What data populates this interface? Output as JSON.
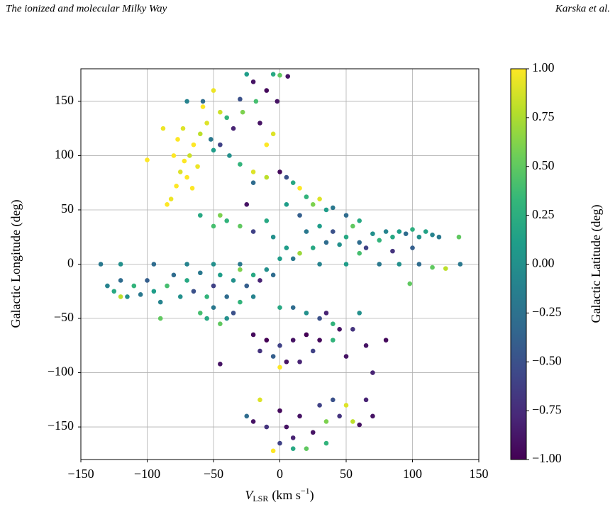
{
  "header": {
    "left": "The ionized and molecular Milky Way",
    "right": "Karska et al."
  },
  "chart_data": {
    "type": "scatter",
    "xlabel": [
      "V",
      "LSR",
      "(km s",
      "−1",
      ")"
    ],
    "ylabel": "Galactic Longitude (deg)",
    "clabel": "Galactic Latitude (deg)",
    "colormap": "viridis",
    "grid": true,
    "xlim": [
      -150,
      150
    ],
    "ylim": [
      -180,
      180
    ],
    "clim": [
      -1,
      1
    ],
    "xticks": [
      {
        "value": -150,
        "label": "−150"
      },
      {
        "value": -100,
        "label": "−100"
      },
      {
        "value": -50,
        "label": "−50"
      },
      0,
      50,
      100,
      150
    ],
    "yticks": [
      {
        "value": -150,
        "label": "−150"
      },
      {
        "value": -100,
        "label": "−100"
      },
      {
        "value": -50,
        "label": "−50"
      },
      0,
      50,
      100,
      150
    ],
    "cticks": [
      {
        "value": -1,
        "label": "−1.00"
      },
      {
        "value": -0.75,
        "label": "−0.75"
      },
      {
        "value": -0.5,
        "label": "−0.50"
      },
      {
        "value": -0.25,
        "label": "−0.25"
      },
      {
        "value": 0,
        "label": "0.00"
      },
      {
        "value": 0.25,
        "label": "0.25"
      },
      {
        "value": 0.5,
        "label": "0.50"
      },
      {
        "value": 0.75,
        "label": "0.75"
      },
      {
        "value": 1,
        "label": "1.00"
      }
    ],
    "x": [
      -85,
      -82,
      -78,
      -75,
      -72,
      -70,
      -68,
      -65,
      -62,
      -80,
      -77,
      -73,
      -88,
      -66,
      -60,
      -55,
      -58,
      -50,
      -45,
      -100,
      -25,
      -20,
      -18,
      -30,
      -40,
      -45,
      -50,
      -52,
      -35,
      -28,
      -10,
      -5,
      0,
      6,
      -15,
      -38,
      -30,
      -20,
      -10,
      -5,
      -58,
      -70,
      -2,
      -20,
      -10,
      0,
      5,
      10,
      15,
      20,
      25,
      30,
      35,
      40,
      -45,
      -40,
      -30,
      -20,
      -10,
      -5,
      -25,
      -50,
      -60,
      5,
      15,
      50,
      60,
      20,
      30,
      40,
      50,
      55,
      60,
      70,
      75,
      80,
      85,
      90,
      95,
      100,
      105,
      110,
      115,
      120,
      60,
      65,
      45,
      35,
      25,
      15,
      10,
      5,
      100,
      85,
      135,
      -135,
      -120,
      -95,
      -70,
      -50,
      -30,
      30,
      50,
      75,
      90,
      105,
      115,
      125,
      136,
      98,
      -130,
      -125,
      -120,
      -115,
      -110,
      -105,
      -100,
      -95,
      -90,
      -85,
      -80,
      -75,
      -70,
      -65,
      -60,
      -55,
      -50,
      -45,
      -40,
      -35,
      -30,
      -25,
      -20,
      -15,
      -10,
      -5,
      0,
      -60,
      -55,
      -50,
      -45,
      -40,
      -35,
      -30,
      -20,
      -90,
      -120,
      0,
      10,
      20,
      30,
      35,
      40,
      45,
      30,
      20,
      10,
      0,
      -10,
      -20,
      -15,
      -5,
      5,
      0,
      15,
      25,
      40,
      55,
      65,
      80,
      70,
      -45,
      60,
      50,
      -15,
      -20,
      -10,
      0,
      5,
      10,
      15,
      20,
      25,
      30,
      35,
      40,
      45,
      50,
      55,
      60,
      65,
      70,
      -5,
      0,
      10,
      35,
      -25
    ],
    "y": [
      55,
      60,
      72,
      85,
      95,
      80,
      100,
      110,
      90,
      100,
      115,
      125,
      125,
      70,
      120,
      130,
      145,
      160,
      140,
      96,
      175,
      168,
      150,
      152,
      135,
      110,
      105,
      115,
      125,
      140,
      160,
      175,
      174,
      173,
      130,
      100,
      92,
      85,
      110,
      120,
      150,
      150,
      150,
      75,
      80,
      85,
      80,
      75,
      70,
      62,
      55,
      60,
      50,
      52,
      45,
      40,
      35,
      30,
      40,
      25,
      55,
      35,
      45,
      55,
      45,
      45,
      40,
      30,
      35,
      30,
      25,
      35,
      20,
      28,
      22,
      30,
      25,
      30,
      28,
      32,
      25,
      30,
      27,
      25,
      10,
      15,
      18,
      20,
      15,
      10,
      5,
      15,
      15,
      12,
      25,
      0,
      0,
      0,
      0,
      0,
      0,
      0,
      0,
      0,
      0,
      0,
      -3,
      -4,
      0,
      -18,
      -20,
      -25,
      -15,
      -30,
      -20,
      -28,
      -15,
      -25,
      -35,
      -20,
      -10,
      -30,
      -15,
      -25,
      -8,
      -30,
      -20,
      -10,
      -30,
      -15,
      -5,
      -20,
      -10,
      -15,
      -5,
      -10,
      5,
      -45,
      -50,
      -40,
      -55,
      -50,
      -45,
      -35,
      -30,
      -50,
      -30,
      -40,
      -40,
      -45,
      -50,
      -45,
      -55,
      -60,
      -70,
      -65,
      -70,
      -75,
      -70,
      -65,
      -80,
      -85,
      -90,
      -95,
      -90,
      -80,
      -70,
      -60,
      -75,
      -70,
      -100,
      -92,
      -45,
      -85,
      -125,
      -145,
      -150,
      -135,
      -150,
      -160,
      -140,
      -170,
      -155,
      -130,
      -145,
      -125,
      -140,
      -130,
      -145,
      -148,
      -125,
      -140,
      -172,
      -165,
      -170,
      -165,
      -140
    ],
    "c": [
      1,
      0.95,
      1,
      0.9,
      1,
      1,
      0.85,
      1,
      0.95,
      1,
      1,
      0.9,
      0.95,
      1,
      0.8,
      0.9,
      1,
      0.95,
      0.85,
      1,
      0.1,
      -0.9,
      0.4,
      -0.5,
      0.3,
      -0.6,
      0.1,
      -0.2,
      -0.8,
      0.6,
      -0.95,
      0.2,
      0.5,
      -0.9,
      -0.9,
      0,
      0.3,
      0.9,
      1,
      0.9,
      -0.3,
      -0.1,
      -0.9,
      -0.3,
      0.8,
      -0.95,
      -0.5,
      0.2,
      1,
      0.3,
      0.6,
      0.9,
      0.1,
      -0.2,
      0.6,
      0.3,
      0.5,
      -0.6,
      0.2,
      0,
      -0.9,
      0.4,
      0.2,
      0.1,
      -0.4,
      -0.3,
      0.2,
      -0.2,
      0.1,
      -0.5,
      0.2,
      0.5,
      -0.3,
      0,
      0.3,
      -0.1,
      0.2,
      0.1,
      -0.3,
      0.25,
      0,
      0.15,
      -0.1,
      -0.2,
      0.4,
      -0.6,
      0,
      -0.3,
      0.2,
      0.7,
      -0.2,
      0.1,
      -0.4,
      -0.7,
      0.5,
      -0.2,
      0,
      -0.3,
      -0.1,
      0,
      -0.2,
      -0.1,
      0.1,
      -0.2,
      0,
      -0.3,
      0.5,
      0.8,
      -0.2,
      0.5,
      -0.1,
      0.2,
      -0.3,
      0,
      0.3,
      -0.2,
      -0.4,
      0.1,
      -0.1,
      0.4,
      -0.3,
      0,
      0.2,
      -0.5,
      -0.2,
      0.3,
      -0.6,
      0.1,
      -0.3,
      0,
      0.6,
      -0.4,
      0.2,
      -0.8,
      0,
      -0.3,
      0.1,
      0.4,
      0.2,
      -0.2,
      0.5,
      0,
      -0.5,
      0.3,
      -0.1,
      0.5,
      0.8,
      0.2,
      -0.3,
      0,
      -0.5,
      -0.8,
      0.3,
      -0.9,
      -0.95,
      -1,
      -0.9,
      -0.6,
      -1,
      -0.95,
      -0.7,
      -0.4,
      -0.9,
      1,
      -0.8,
      -0.6,
      0.3,
      -0.7,
      -0.9,
      -0.95,
      -0.8,
      -0.9,
      0,
      -0.9,
      0.9,
      -0.9,
      -0.7,
      -0.95,
      -0.9,
      -0.8,
      -0.9,
      0.5,
      -0.9,
      -0.6,
      0.6,
      -0.5,
      -0.7,
      0.9,
      0.8,
      -0.9,
      -0.8,
      -0.9,
      1,
      -0.6,
      0.2,
      0.3,
      -0.3
    ]
  }
}
